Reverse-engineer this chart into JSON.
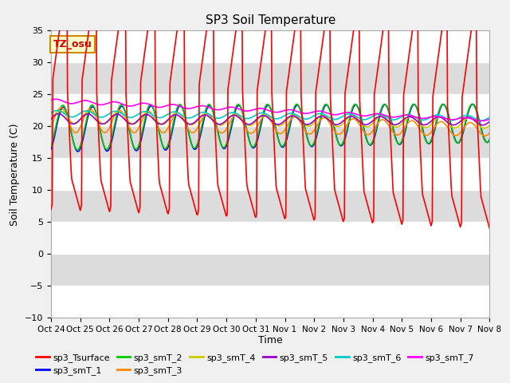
{
  "title": "SP3 Soil Temperature",
  "ylabel": "Soil Temperature (C)",
  "xlabel": "Time",
  "annotation": "TZ_osu",
  "ylim": [
    -10,
    35
  ],
  "x_tick_labels": [
    "Oct 24",
    "Oct 25",
    "Oct 26",
    "Oct 27",
    "Oct 28",
    "Oct 29",
    "Oct 30",
    "Oct 31",
    "Nov 1",
    "Nov 2",
    "Nov 3",
    "Nov 4",
    "Nov 5",
    "Nov 6",
    "Nov 7",
    "Nov 8"
  ],
  "series_colors": {
    "sp3_Tsurface": "#FF0000",
    "sp3_smT_1": "#0000FF",
    "sp3_smT_2": "#00CC00",
    "sp3_smT_3": "#FF8800",
    "sp3_smT_4": "#CCCC00",
    "sp3_smT_5": "#9900CC",
    "sp3_smT_6": "#00CCCC",
    "sp3_smT_7": "#FF00FF"
  },
  "bg_color": "#F0F0F0",
  "band_colors": [
    "#FFFFFF",
    "#DCDCDC"
  ],
  "grid_color": "#FFFFFF"
}
